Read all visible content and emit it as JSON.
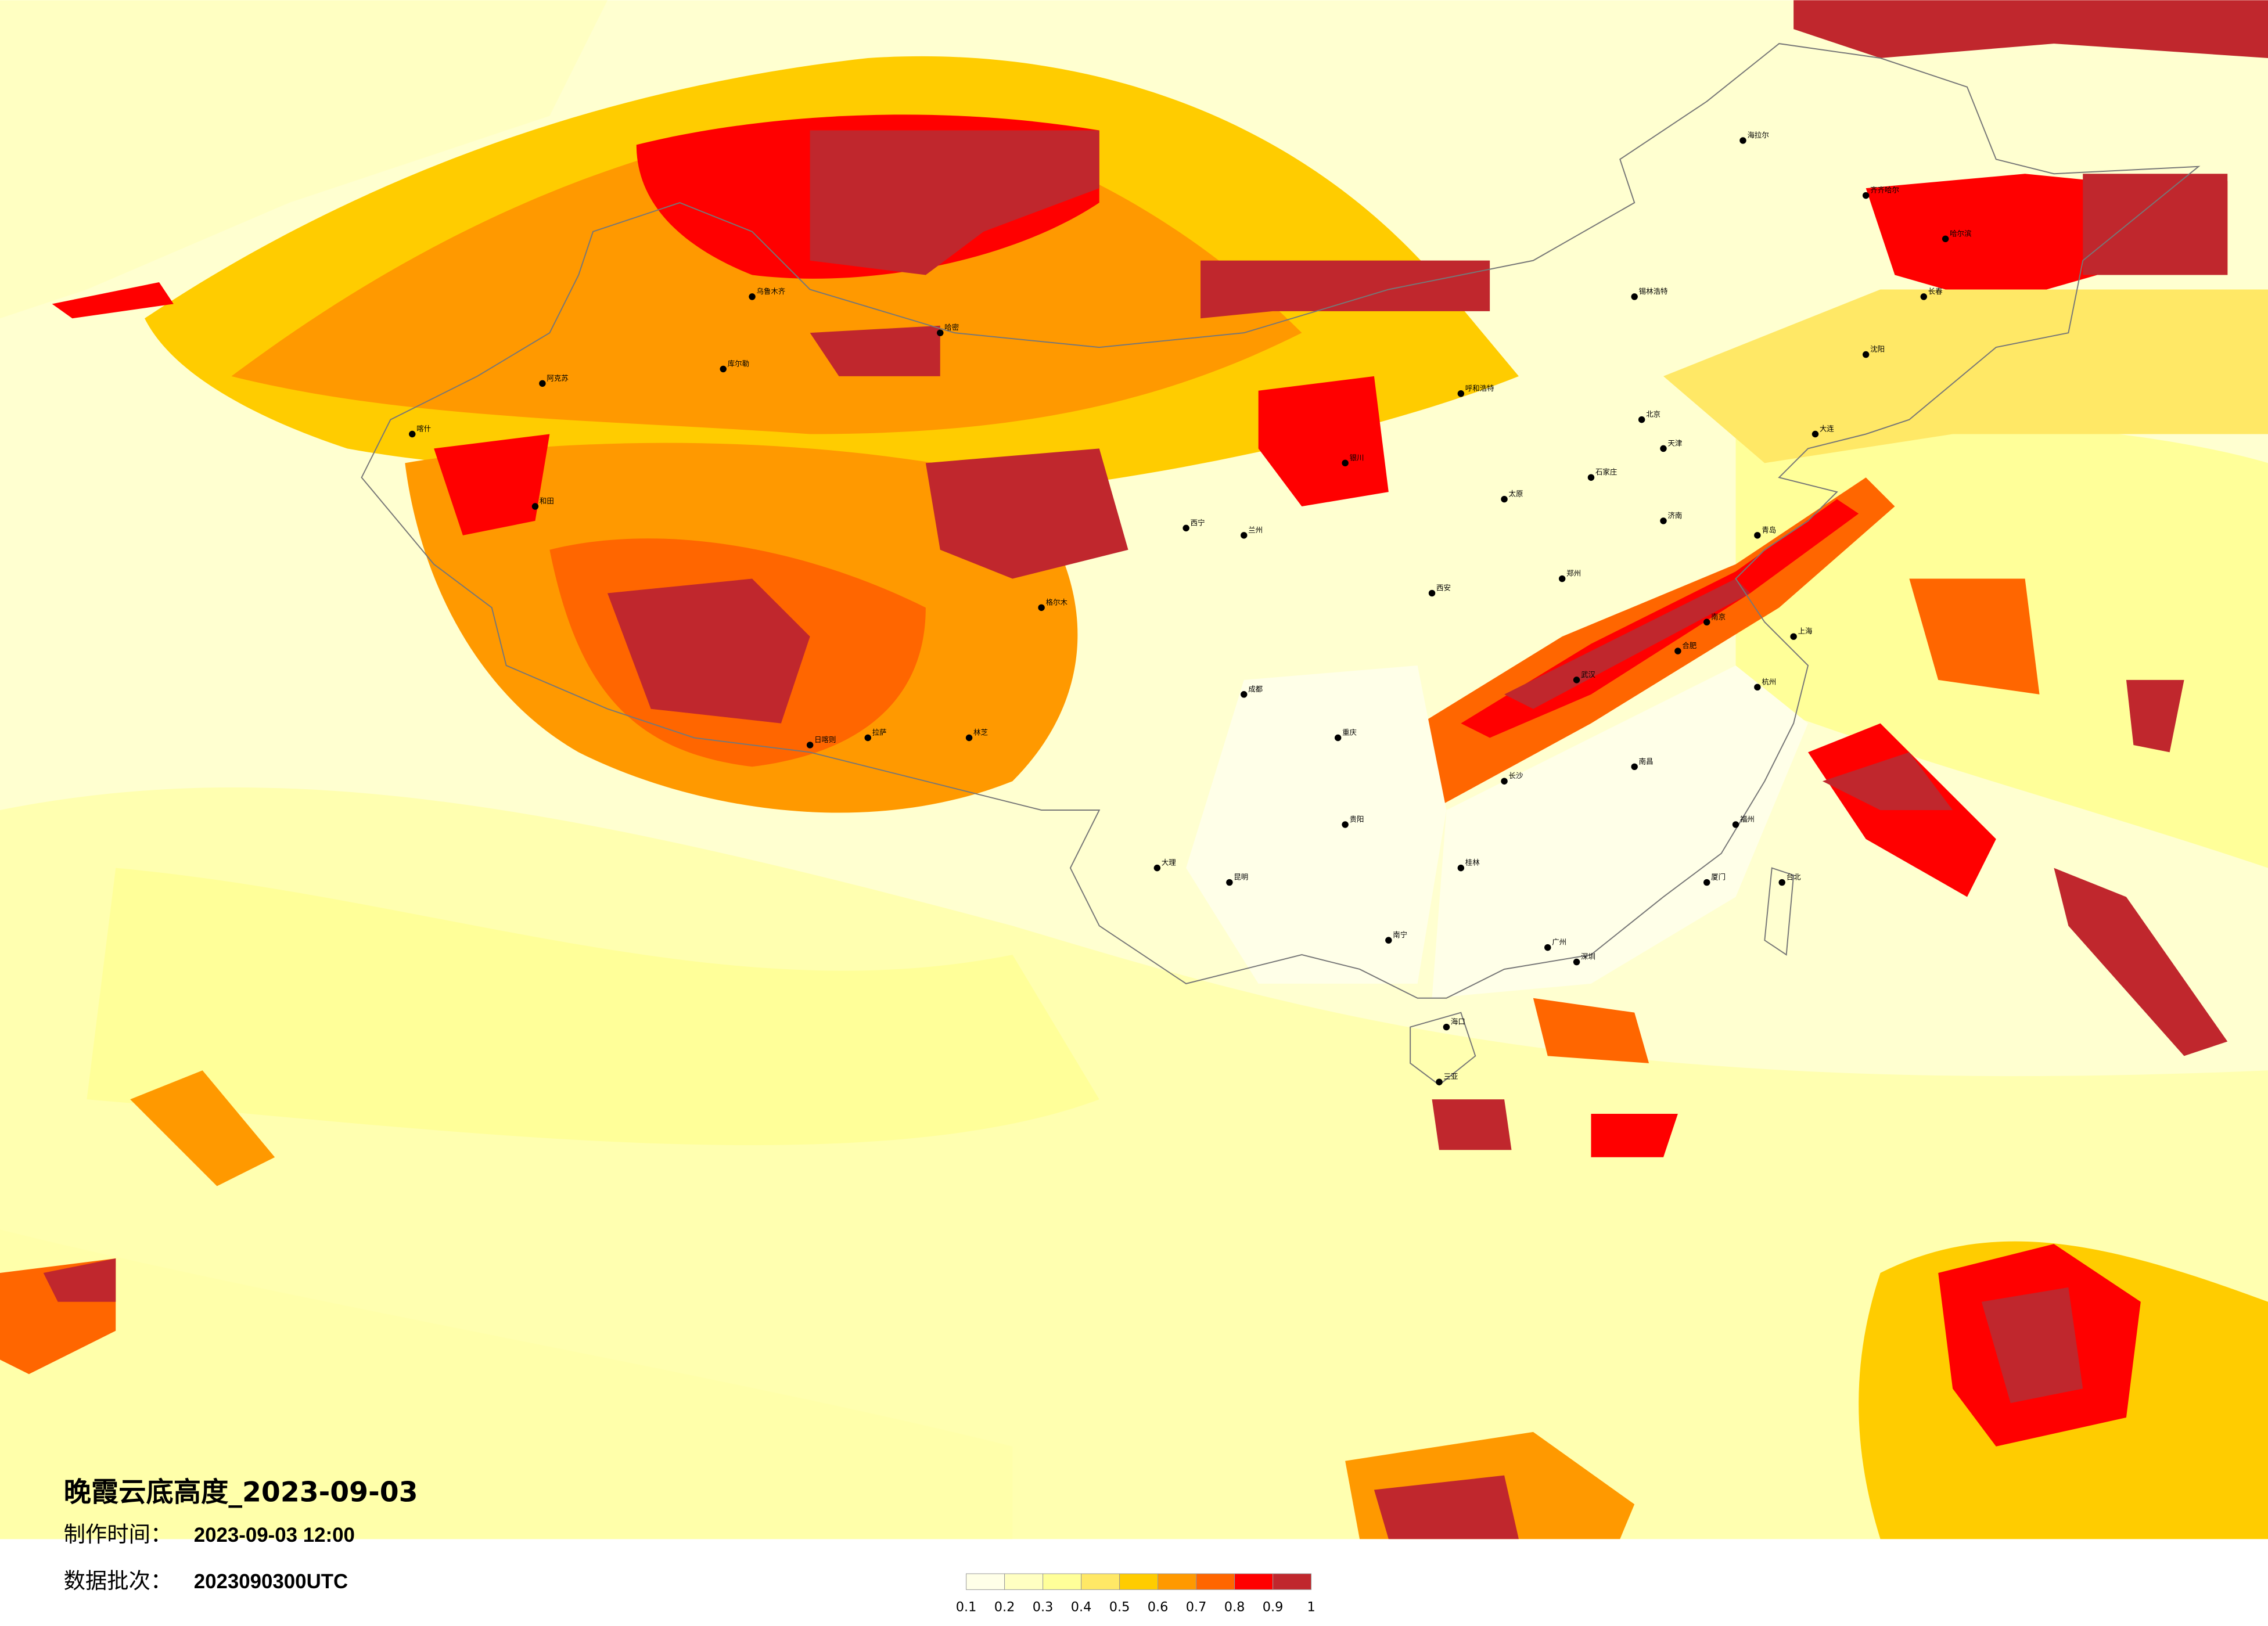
{
  "title": "晚霞云底高度_2023-09-03",
  "production_time": {
    "label": "制作时间：",
    "value": "2023-09-03 12:00"
  },
  "data_batch": {
    "label": "数据批次：",
    "value": "2023090300UTC"
  },
  "legend": {
    "ticks": [
      "0.1",
      "0.2",
      "0.3",
      "0.4",
      "0.5",
      "0.6",
      "0.7",
      "0.8",
      "0.9",
      "1"
    ],
    "colors": [
      "#FFFFE8",
      "#FFFFC2",
      "#FFFF99",
      "#FFE866",
      "#FFCC00",
      "#FF9900",
      "#FF6600",
      "#FF0000",
      "#C0272D"
    ]
  },
  "cities": [
    "海拉尔",
    "齐齐哈尔",
    "哈尔滨",
    "长春",
    "沈阳",
    "大连",
    "锡林浩特",
    "呼和浩特",
    "北京",
    "天津",
    "石家庄",
    "太原",
    "济南",
    "青岛",
    "郑州",
    "西安",
    "银川",
    "兰州",
    "西宁",
    "乌鲁木齐",
    "哈密",
    "喀什",
    "阿克苏",
    "和田",
    "库尔勒",
    "格尔木",
    "拉萨",
    "日喀则",
    "林芝",
    "成都",
    "重庆",
    "贵阳",
    "昆明",
    "南宁",
    "广州",
    "深圳",
    "长沙",
    "武汉",
    "南昌",
    "合肥",
    "南京",
    "上海",
    "杭州",
    "福州",
    "厦门",
    "台北",
    "海口",
    "三亚",
    "桂林",
    "大理"
  ]
}
